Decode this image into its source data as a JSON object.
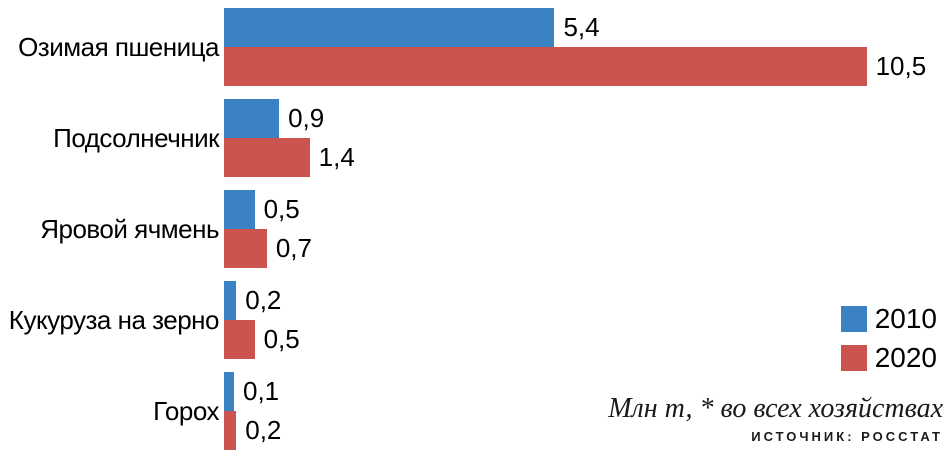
{
  "chart_data": {
    "type": "bar",
    "orientation": "horizontal",
    "categories": [
      "Озимая пшеница",
      "Подсолнечник",
      "Яровой ячмень",
      "Кукуруза на зерно",
      "Горох"
    ],
    "series": [
      {
        "name": "2010",
        "color": "#3a82c4",
        "values": [
          5.4,
          0.9,
          0.5,
          0.2,
          0.1
        ]
      },
      {
        "name": "2020",
        "color": "#cb544f",
        "values": [
          10.5,
          1.4,
          0.7,
          0.5,
          0.2
        ]
      }
    ],
    "value_labels": [
      [
        "5,4",
        "0,9",
        "0,5",
        "0,2",
        "0,1"
      ],
      [
        "10,5",
        "1,4",
        "0,7",
        "0,5",
        "0,2"
      ]
    ],
    "xlim": [
      0,
      10.8
    ],
    "grid": false,
    "legend_position": "middle-right",
    "title": "",
    "xlabel": "",
    "ylabel": ""
  },
  "legend": {
    "items": [
      {
        "label": "2010",
        "color": "#3a82c4"
      },
      {
        "label": "2020",
        "color": "#cb544f"
      }
    ]
  },
  "notes": {
    "unit_note": "Млн т, * во всех хозяйствах",
    "source": "ИСТОЧНИК: РОССТАТ"
  }
}
